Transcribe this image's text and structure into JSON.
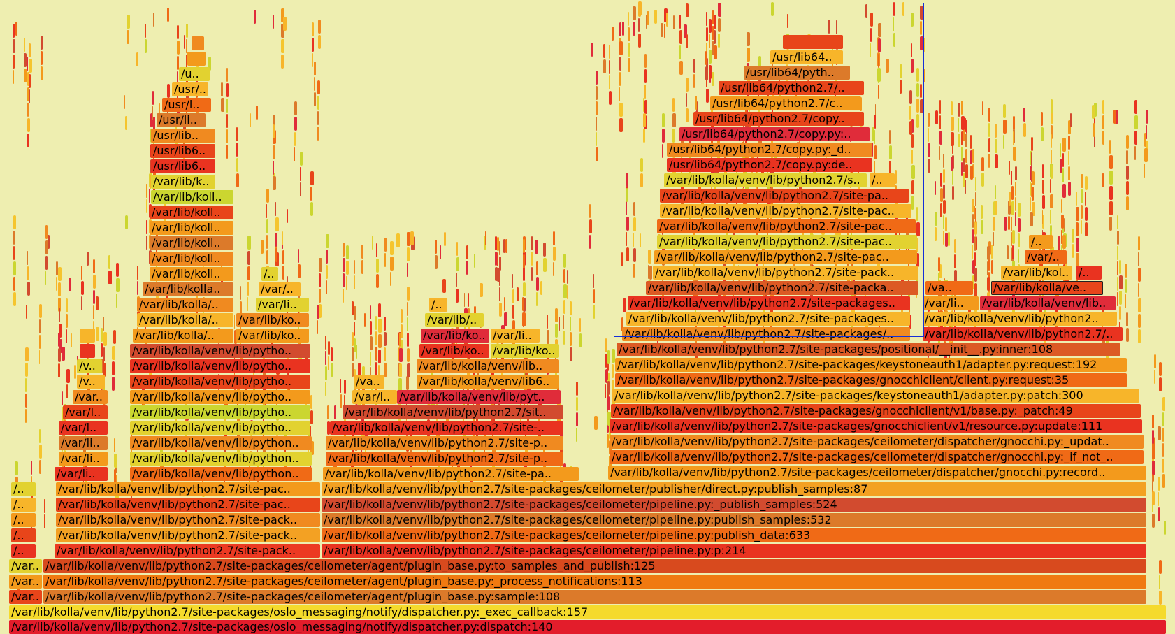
{
  "palette": [
    "#e8451a",
    "#f06a16",
    "#f39a1c",
    "#f7b52a",
    "#e2d230",
    "#d24b2f",
    "#e93320",
    "#f5c52e",
    "#dc7a2a",
    "#e02c3a",
    "#cbd630",
    "#f08a20"
  ],
  "frames": {
    "dispatch": "/var/lib/kolla/venv/lib/python2.7/site-packages/oslo_messaging/notify/dispatcher.py:dispatch:140",
    "exec_callback": "/var/lib/kolla/venv/lib/python2.7/site-packages/oslo_messaging/notify/dispatcher.py:_exec_callback:157",
    "sample": "/var/lib/kolla/venv/lib/python2.7/site-packages/ceilometer/agent/plugin_base.py:sample:108",
    "process_notifications": "/var/lib/kolla/venv/lib/python2.7/site-packages/ceilometer/agent/plugin_base.py:_process_notifications:113",
    "to_samples": "/var/lib/kolla/venv/lib/python2.7/site-packages/ceilometer/agent/plugin_base.py:to_samples_and_publish:125",
    "pipeline_p": "/var/lib/kolla/venv/lib/python2.7/site-packages/ceilometer/pipeline.py:p:214",
    "publish_data": "/var/lib/kolla/venv/lib/python2.7/site-packages/ceilometer/pipeline.py:publish_data:633",
    "publish_samples_532": "/var/lib/kolla/venv/lib/python2.7/site-packages/ceilometer/pipeline.py:publish_samples:532",
    "publish_samples_524": "/var/lib/kolla/venv/lib/python2.7/site-packages/ceilometer/pipeline.py:_publish_samples:524",
    "direct_publish": "/var/lib/kolla/venv/lib/python2.7/site-packages/ceilometer/publisher/direct.py:publish_samples:87",
    "gnocchi_record": "/var/lib/kolla/venv/lib/python2.7/site-packages/ceilometer/dispatcher/gnocchi.py:record..",
    "gnocchi_if_not": "/var/lib/kolla/venv/lib/python2.7/site-packages/ceilometer/dispatcher/gnocchi.py:_if_not_..",
    "gnocchi_updat": "/var/lib/kolla/venv/lib/python2.7/site-packages/ceilometer/dispatcher/gnocchi.py:_updat..",
    "resource_update": "/var/lib/kolla/venv/lib/python2.7/site-packages/gnocchiclient/v1/resource.py:update:111",
    "base_patch": "/var/lib/kolla/venv/lib/python2.7/site-packages/gnocchiclient/v1/base.py:_patch:49",
    "adapter_patch": "/var/lib/kolla/venv/lib/python2.7/site-packages/keystoneauth1/adapter.py:patch:300",
    "client_request": "/var/lib/kolla/venv/lib/python2.7/site-packages/gnocchiclient/client.py:request:35",
    "adapter_request": "/var/lib/kolla/venv/lib/python2.7/site-packages/keystoneauth1/adapter.py:request:192",
    "positional_inner": "/var/lib/kolla/venv/lib/python2.7/site-packages/positional/__init__.py:inner:108",
    "left_site_pack1": "/var/lib/kolla/venv/lib/python2.7/site-pack..",
    "left_site_pack2": "/var/lib/kolla/venv/lib/python2.7/site-pack..",
    "left_site_pack3": "/var/lib/kolla/venv/lib/python2.7/site-pack..",
    "left_site_pac1": "/var/lib/kolla/venv/lib/python2.7/site-pac..",
    "left_site_pac2": "/var/lib/kolla/venv/lib/python2.7/site-pac..",
    "left_python1": "/var/lib/kolla/venv/lib/python..",
    "left_python2": "/var/lib/kolla/venv/lib/python..",
    "left_python3": "/var/lib/kolla/venv/lib/python..",
    "left_pytho1": "/var/lib/kolla/venv/lib/pytho..",
    "left_pytho2": "/var/lib/kolla/venv/lib/pytho..",
    "left_pytho3": "/var/lib/kolla/venv/lib/pytho..",
    "left_pytho4": "/var/lib/kolla/venv/lib/pytho..",
    "left_pytho5": "/var/lib/kolla/venv/lib/pytho..",
    "left_pytho6": "/var/lib/kolla/venv/lib/pytho..",
    "left_kolla_a": "/var/lib/kolla/..",
    "left_kolla_b": "/var/lib/kolla/..",
    "left_kolla_c": "/var/lib/kolla/..",
    "left_kolla_d": "/var/lib/kolla..",
    "left_koll1": "/var/lib/koll..",
    "left_koll2": "/var/lib/koll..",
    "left_koll3": "/var/lib/koll..",
    "left_koll4": "/var/lib/koll..",
    "left_koll5": "/var/lib/koll..",
    "left_koll6": "/var/lib/koll..",
    "left_k": "/var/lib/k..",
    "left_usr6a": "/usr/lib6..",
    "left_usr6b": "/usr/lib6..",
    "left_usrlib": "/usr/lib..",
    "left_usrli": "/usr/li..",
    "left_usrl": "/usr/l..",
    "left_usr": "/usr/..",
    "left_u": "/u..",
    "lm_ko1": "/var/lib/ko..",
    "lm_ko2": "/var/lib/ko..",
    "lm_li": "/var/li..",
    "lm_slash": "/var/..",
    "lm_dots": "/..",
    "far_li1": "/var/li..",
    "far_li2": "/var/li..",
    "far_li3": "/var/li..",
    "far_l1": "/var/l..",
    "far_l2": "/var/l..",
    "far_var": "/var..",
    "far_v1": "/v..",
    "far_v2": "/v..",
    "edge_var1": "/var..",
    "edge_var2": "/var..",
    "edge_var3": "/var..",
    "edge_dots1": "/..",
    "edge_dots2": "/..",
    "edge_dots3": "/..",
    "edge_dots4": "/..",
    "edge_dots5": "/..",
    "mid_sitepa": "/var/lib/kolla/venv/lib/python2.7/site-pa..",
    "mid_sitep1": "/var/lib/kolla/venv/lib/python2.7/site-p..",
    "mid_sitep2": "/var/lib/kolla/venv/lib/python2.7/site-p..",
    "mid_site": "/var/lib/kolla/venv/lib/python2.7/site-..",
    "mid_sit": "/var/lib/kolla/venv/lib/python2.7/sit..",
    "mid_pyt": "/var/lib/kolla/venv/lib/pyt..",
    "mid_l": "/var/l..",
    "mid_va": "/va..",
    "mid_lib6": "/var/lib/kolla/venv/lib6..",
    "mid_lib": "/var/lib/kolla/venv/lib..",
    "mid_ko1": "/var/lib/ko..",
    "mid_ko2": "/var/lib/ko..",
    "mid_ko3": "/var/lib/ko..",
    "mid_li": "/var/li..",
    "mid_slash": "/var/lib/..",
    "mid_dots": "/..",
    "sel_s1": "/var/lib/kolla/venv/lib/python2.7/site-packages/..",
    "sel_s2": "/var/lib/kolla/venv/lib/python2.7/site-packages..",
    "sel_s3": "/var/lib/kolla/venv/lib/python2.7/site-packages..",
    "sel_s4": "/var/lib/kolla/venv/lib/python2.7/site-packa..",
    "sel_s5": "/var/lib/kolla/venv/lib/python2.7/site-pack..",
    "sel_s6": "/var/lib/kolla/venv/lib/python2.7/site-pac..",
    "sel_s7": "/var/lib/kolla/venv/lib/python2.7/site-pac..",
    "sel_s8": "/var/lib/kolla/venv/lib/python2.7/site-pac..",
    "sel_s9": "/var/lib/kolla/venv/lib/python2.7/site-pac..",
    "sel_s10": "/var/lib/kolla/venv/lib/python2.7/site-pa..",
    "sel_s11": "/var/lib/kolla/venv/lib/python2.7/s..",
    "sel_s12": "/usr/lib64/python2.7/copy.py:de..",
    "sel_s13": "/usr/lib64/python2.7/copy.py:_d..",
    "sel_s14": "/usr/lib64/python2.7/copy.py:..",
    "sel_s15": "/usr/lib64/python2.7/copy..",
    "sel_s16": "/usr/lib64/python2.7/c..",
    "sel_s17": "/usr/lib64/python2.7/..",
    "sel_s18": "/usr/lib64/pyth..",
    "sel_s19": "/usr/lib64..",
    "sel_side": "/..",
    "r_python27": "/var/lib/kolla/venv/lib/python2.7/..",
    "r_python2": "/var/lib/kolla/venv/lib/python2..",
    "r_lib": "/var/lib/kolla/venv/lib..",
    "r_li": "/var/li..",
    "r_ve": "/var/lib/kolla/ve..",
    "r_va": "/va..",
    "r_kol": "/var/lib/kol..",
    "r_dots1": "/..",
    "r_dots2": "/..",
    "r_slash": "/var/.."
  }
}
